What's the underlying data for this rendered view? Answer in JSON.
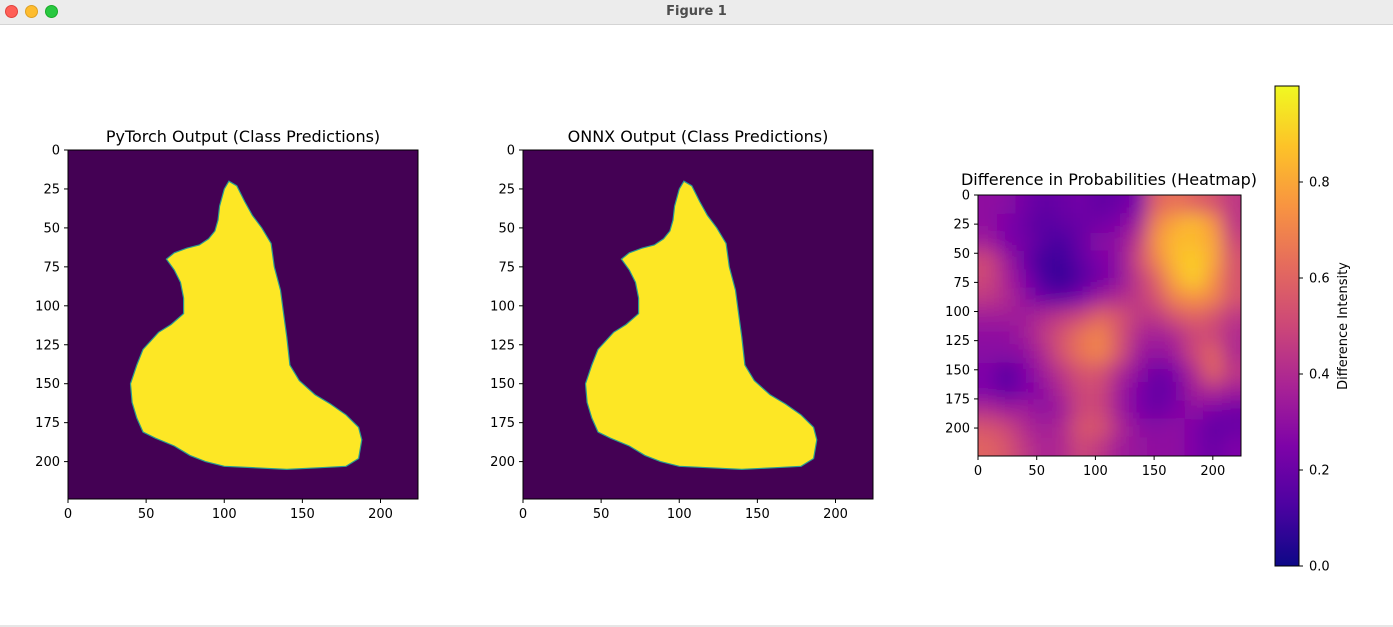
{
  "window": {
    "title": "Figure 1"
  },
  "colors": {
    "purple": "#440154",
    "yellow": "#fde725",
    "edge": "#2a9d8f"
  },
  "chart_data": [
    {
      "type": "heatmap",
      "title": "PyTorch Output (Class Predictions)",
      "colormap": "viridis",
      "xlim": [
        0,
        224
      ],
      "ylim": [
        224,
        0
      ],
      "xticks": [
        0,
        50,
        100,
        150,
        200
      ],
      "yticks": [
        0,
        25,
        50,
        75,
        100,
        125,
        150,
        175,
        200
      ],
      "classes": [
        0,
        1
      ],
      "region_class1_polygon": [
        [
          103,
          20
        ],
        [
          108,
          23
        ],
        [
          113,
          33
        ],
        [
          118,
          42
        ],
        [
          124,
          50
        ],
        [
          130,
          60
        ],
        [
          132,
          75
        ],
        [
          136,
          90
        ],
        [
          138,
          105
        ],
        [
          140,
          120
        ],
        [
          142,
          138
        ],
        [
          148,
          148
        ],
        [
          158,
          157
        ],
        [
          168,
          163
        ],
        [
          178,
          170
        ],
        [
          186,
          178
        ],
        [
          188,
          186
        ],
        [
          186,
          198
        ],
        [
          178,
          203
        ],
        [
          160,
          204
        ],
        [
          140,
          205
        ],
        [
          120,
          204
        ],
        [
          100,
          203
        ],
        [
          88,
          200
        ],
        [
          78,
          196
        ],
        [
          68,
          190
        ],
        [
          56,
          185
        ],
        [
          48,
          181
        ],
        [
          44,
          172
        ],
        [
          41,
          162
        ],
        [
          40,
          150
        ],
        [
          44,
          138
        ],
        [
          48,
          128
        ],
        [
          58,
          117
        ],
        [
          66,
          112
        ],
        [
          74,
          105
        ],
        [
          74,
          95
        ],
        [
          72,
          85
        ],
        [
          68,
          77
        ],
        [
          63,
          70
        ],
        [
          68,
          66
        ],
        [
          76,
          63
        ],
        [
          84,
          61
        ],
        [
          90,
          57
        ],
        [
          94,
          52
        ],
        [
          96,
          45
        ],
        [
          97,
          36
        ],
        [
          100,
          25
        ]
      ]
    },
    {
      "type": "heatmap",
      "title": "ONNX Output (Class Predictions)",
      "colormap": "viridis",
      "xlim": [
        0,
        224
      ],
      "ylim": [
        224,
        0
      ],
      "xticks": [
        0,
        50,
        100,
        150,
        200
      ],
      "yticks": [
        0,
        25,
        50,
        75,
        100,
        125,
        150,
        175,
        200
      ],
      "classes": [
        0,
        1
      ],
      "region_class1_polygon": [
        [
          103,
          20
        ],
        [
          108,
          23
        ],
        [
          113,
          33
        ],
        [
          118,
          42
        ],
        [
          124,
          50
        ],
        [
          130,
          60
        ],
        [
          132,
          75
        ],
        [
          136,
          90
        ],
        [
          138,
          105
        ],
        [
          140,
          120
        ],
        [
          142,
          138
        ],
        [
          148,
          148
        ],
        [
          158,
          157
        ],
        [
          168,
          163
        ],
        [
          178,
          170
        ],
        [
          186,
          178
        ],
        [
          188,
          186
        ],
        [
          186,
          198
        ],
        [
          178,
          203
        ],
        [
          160,
          204
        ],
        [
          140,
          205
        ],
        [
          120,
          204
        ],
        [
          100,
          203
        ],
        [
          88,
          200
        ],
        [
          78,
          196
        ],
        [
          68,
          190
        ],
        [
          56,
          185
        ],
        [
          48,
          181
        ],
        [
          44,
          172
        ],
        [
          41,
          162
        ],
        [
          40,
          150
        ],
        [
          44,
          138
        ],
        [
          48,
          128
        ],
        [
          58,
          117
        ],
        [
          66,
          112
        ],
        [
          74,
          105
        ],
        [
          74,
          95
        ],
        [
          72,
          85
        ],
        [
          68,
          77
        ],
        [
          63,
          70
        ],
        [
          68,
          66
        ],
        [
          76,
          63
        ],
        [
          84,
          61
        ],
        [
          90,
          57
        ],
        [
          94,
          52
        ],
        [
          96,
          45
        ],
        [
          97,
          36
        ],
        [
          100,
          25
        ]
      ]
    },
    {
      "type": "heatmap",
      "title": "Difference in Probabilities (Heatmap)",
      "colormap": "plasma",
      "xlim": [
        0,
        224
      ],
      "ylim": [
        224,
        0
      ],
      "xticks": [
        0,
        50,
        100,
        150,
        200
      ],
      "yticks": [
        0,
        25,
        50,
        75,
        100,
        125,
        150,
        175,
        200
      ],
      "colorbar": {
        "label": "Difference Intensity",
        "range": [
          0.0,
          1.0
        ],
        "ticks": [
          "0.0",
          "0.2",
          "0.4",
          "0.6",
          "0.8"
        ]
      },
      "grid_size": [
        14,
        14
      ],
      "cells": [
        [
          0.3,
          0.28,
          0.22,
          0.18,
          0.2,
          0.22,
          0.18,
          0.2,
          0.25,
          0.6,
          0.65,
          0.6,
          0.55,
          0.45
        ],
        [
          0.3,
          0.25,
          0.2,
          0.15,
          0.18,
          0.2,
          0.22,
          0.25,
          0.35,
          0.7,
          0.8,
          0.85,
          0.75,
          0.45
        ],
        [
          0.35,
          0.25,
          0.22,
          0.15,
          0.12,
          0.2,
          0.28,
          0.3,
          0.45,
          0.75,
          0.85,
          0.85,
          0.8,
          0.5
        ],
        [
          0.5,
          0.35,
          0.2,
          0.1,
          0.1,
          0.18,
          0.25,
          0.3,
          0.5,
          0.7,
          0.85,
          0.9,
          0.8,
          0.55
        ],
        [
          0.5,
          0.38,
          0.25,
          0.12,
          0.08,
          0.15,
          0.22,
          0.3,
          0.45,
          0.6,
          0.8,
          0.9,
          0.75,
          0.55
        ],
        [
          0.45,
          0.4,
          0.3,
          0.2,
          0.18,
          0.25,
          0.35,
          0.4,
          0.45,
          0.55,
          0.7,
          0.75,
          0.7,
          0.55
        ],
        [
          0.35,
          0.35,
          0.35,
          0.4,
          0.45,
          0.5,
          0.6,
          0.55,
          0.45,
          0.45,
          0.55,
          0.6,
          0.55,
          0.45
        ],
        [
          0.3,
          0.3,
          0.35,
          0.45,
          0.55,
          0.65,
          0.7,
          0.55,
          0.4,
          0.35,
          0.4,
          0.5,
          0.5,
          0.4
        ],
        [
          0.28,
          0.28,
          0.3,
          0.4,
          0.55,
          0.65,
          0.7,
          0.55,
          0.35,
          0.3,
          0.35,
          0.5,
          0.6,
          0.4
        ],
        [
          0.25,
          0.15,
          0.25,
          0.35,
          0.45,
          0.55,
          0.55,
          0.4,
          0.3,
          0.2,
          0.25,
          0.4,
          0.6,
          0.45
        ],
        [
          0.25,
          0.18,
          0.25,
          0.3,
          0.4,
          0.5,
          0.5,
          0.35,
          0.25,
          0.18,
          0.22,
          0.35,
          0.4,
          0.35
        ],
        [
          0.4,
          0.35,
          0.35,
          0.3,
          0.35,
          0.5,
          0.5,
          0.35,
          0.25,
          0.2,
          0.25,
          0.3,
          0.25,
          0.22
        ],
        [
          0.55,
          0.5,
          0.4,
          0.35,
          0.4,
          0.55,
          0.55,
          0.4,
          0.3,
          0.28,
          0.3,
          0.25,
          0.18,
          0.2
        ],
        [
          0.6,
          0.55,
          0.45,
          0.38,
          0.4,
          0.5,
          0.45,
          0.35,
          0.32,
          0.3,
          0.3,
          0.25,
          0.2,
          0.25
        ]
      ]
    }
  ]
}
